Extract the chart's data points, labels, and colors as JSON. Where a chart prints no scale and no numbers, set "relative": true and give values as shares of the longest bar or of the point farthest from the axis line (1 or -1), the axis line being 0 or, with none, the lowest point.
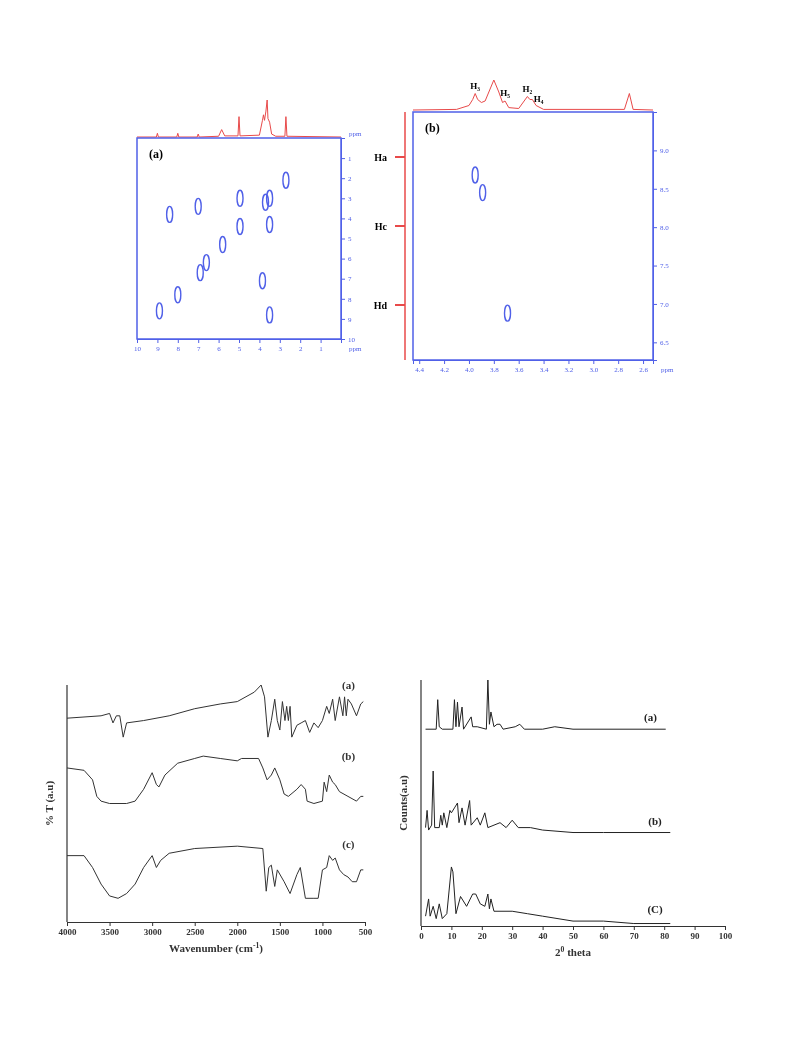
{
  "chart_data": [
    {
      "type": "line",
      "relative": true,
      "xlim": [
        10,
        0
      ],
      "tick_labels": false,
      "series": [
        {
          "color": "#e84a4a",
          "x": [
            10,
            9.05,
            9,
            8.95,
            8.05,
            8,
            7.95,
            7.05,
            7,
            6.95,
            6,
            5.85,
            5.7,
            5.05,
            5,
            4.95,
            4,
            3.85,
            3.8,
            3.75,
            3.68,
            3.62,
            3.58,
            3.5,
            3.4,
            3.2,
            2.75,
            2.7,
            2.65,
            0
          ],
          "values": [
            0,
            0,
            0.1,
            0,
            0,
            0.1,
            0,
            0,
            0.08,
            0,
            0.02,
            0.2,
            0.03,
            0.03,
            0.55,
            0.03,
            0.05,
            0.45,
            0.6,
            0.45,
            0.7,
            1,
            0.5,
            0.4,
            0.08,
            0.02,
            0.02,
            0.55,
            0.02,
            0
          ]
        }
      ]
    },
    {
      "type": "scatter",
      "title": "(a)",
      "xlabel": "ppm",
      "ylabel": "ppm",
      "xlim": [
        10,
        0
      ],
      "ylim": [
        10,
        0
      ],
      "xticks": [
        10,
        9,
        8,
        7,
        6,
        5,
        4,
        3,
        2,
        1
      ],
      "yticks": [
        1,
        2,
        3,
        4,
        5,
        6,
        7,
        8,
        9,
        10
      ],
      "marker": "circle",
      "series": [
        {
          "color": "#5060e8",
          "x": [
            8.9,
            8.0,
            6.9,
            6.6,
            5.8,
            4.95,
            4.95,
            3.7,
            3.5,
            3.5,
            2.7,
            8.4,
            7.0,
            3.85,
            3.5
          ],
          "values": [
            8.6,
            7.8,
            6.7,
            6.2,
            5.3,
            4.4,
            3.0,
            3.2,
            3.0,
            4.3,
            2.1,
            3.8,
            3.4,
            7.1,
            8.8
          ]
        }
      ]
    },
    {
      "type": "line",
      "relative": true,
      "xlim": [
        4.45,
        2.52
      ],
      "tick_labels": false,
      "annotations": [
        {
          "text": "H₃",
          "x": 3.95,
          "y": 0.55
        },
        {
          "text": "H₅",
          "x": 3.71,
          "y": 0.3
        },
        {
          "text": "H₂",
          "x": 3.53,
          "y": 0.45
        },
        {
          "text": "H₄",
          "x": 3.44,
          "y": 0.1
        }
      ],
      "series": [
        {
          "color": "#e84a4a",
          "x": [
            4.45,
            4.1,
            4.0,
            3.97,
            3.95,
            3.93,
            3.9,
            3.87,
            3.8,
            3.76,
            3.73,
            3.71,
            3.68,
            3.6,
            3.53,
            3.51,
            3.49,
            3.46,
            3.4,
            2.75,
            2.71,
            2.68,
            2.52
          ],
          "values": [
            0,
            0.02,
            0.15,
            0.35,
            0.55,
            0.35,
            0.25,
            0.3,
            1,
            0.6,
            0.25,
            0.3,
            0.08,
            0.05,
            0.45,
            0.35,
            0.35,
            0.15,
            0.02,
            0.02,
            0.55,
            0.02,
            0
          ]
        }
      ]
    },
    {
      "type": "scatter",
      "title": "(b)",
      "xlabel": "ppm",
      "xlim": [
        4.45,
        2.52
      ],
      "ylim": [
        6.27,
        9.5
      ],
      "xticks": [
        4.4,
        4.2,
        {
          "value": 4,
          "label": "4.0"
        },
        3.8,
        3.6,
        3.4,
        3.2,
        {
          "value": 3,
          "label": "3.0"
        },
        2.8,
        2.6
      ],
      "yticks": [
        {
          "value": 9,
          "label": "9.0"
        },
        8.5,
        {
          "value": 8,
          "label": "8.0"
        },
        7.5,
        {
          "value": 7,
          "label": "7.0"
        },
        6.5
      ],
      "marker": "circle",
      "annotations": [
        "Ha",
        "Hc",
        "Hd"
      ],
      "series": [
        {
          "color": "#5060e8",
          "x": [
            3.95,
            3.89,
            3.69
          ],
          "values": [
            8.68,
            8.45,
            6.88
          ]
        }
      ]
    },
    {
      "type": "line",
      "relative": true,
      "xlim": [
        4000,
        500
      ],
      "xticks": [
        4000,
        3500,
        3000,
        2500,
        2000,
        1500,
        1000,
        500
      ],
      "xlabel": "Wavenumber (cm$^{-1}$)",
      "ylabel": "% T (a.u)",
      "series": [
        {
          "name": "(a)",
          "color": "#333333",
          "x": [
            4000,
            3600,
            3500,
            3460,
            3420,
            3380,
            3340,
            3300,
            3100,
            2800,
            2500,
            2200,
            2000,
            1800,
            1720,
            1680,
            1640,
            1600,
            1560,
            1530,
            1500,
            1470,
            1440,
            1420,
            1400,
            1380,
            1360,
            1300,
            1250,
            1200,
            1150,
            1100,
            1050,
            1000,
            950,
            920,
            880,
            850,
            800,
            760,
            740,
            720,
            700,
            660,
            600,
            550,
            520
          ],
          "values": [
            0.86,
            0.87,
            0.88,
            0.84,
            0.87,
            0.87,
            0.78,
            0.84,
            0.85,
            0.87,
            0.9,
            0.92,
            0.93,
            0.97,
            1,
            0.95,
            0.78,
            0.85,
            0.94,
            0.85,
            0.81,
            0.93,
            0.85,
            0.91,
            0.85,
            0.91,
            0.78,
            0.83,
            0.84,
            0.85,
            0.8,
            0.84,
            0.82,
            0.85,
            0.91,
            0.88,
            0.94,
            0.85,
            0.95,
            0.87,
            0.95,
            0.87,
            0.94,
            0.92,
            0.87,
            0.92,
            0.93
          ]
        },
        {
          "name": "(b)",
          "color": "#333333",
          "x": [
            4000,
            3800,
            3700,
            3650,
            3600,
            3500,
            3300,
            3200,
            3100,
            3000,
            2950,
            2920,
            2850,
            2700,
            2500,
            2400,
            2200,
            2000,
            1950,
            1750,
            1700,
            1650,
            1600,
            1560,
            1500,
            1450,
            1400,
            1300,
            1250,
            1200,
            1180,
            1100,
            1000,
            980,
            950,
            920,
            880,
            850,
            800,
            700,
            600,
            550,
            520
          ],
          "values": [
            0.65,
            0.64,
            0.6,
            0.53,
            0.51,
            0.5,
            0.5,
            0.51,
            0.56,
            0.63,
            0.58,
            0.57,
            0.62,
            0.67,
            0.69,
            0.7,
            0.69,
            0.68,
            0.69,
            0.69,
            0.65,
            0.6,
            0.62,
            0.65,
            0.6,
            0.54,
            0.53,
            0.56,
            0.58,
            0.56,
            0.51,
            0.5,
            0.51,
            0.59,
            0.55,
            0.62,
            0.59,
            0.58,
            0.55,
            0.53,
            0.51,
            0.53,
            0.53
          ]
        },
        {
          "name": "(c)",
          "color": "#333333",
          "x": [
            4000,
            3800,
            3700,
            3600,
            3500,
            3400,
            3300,
            3200,
            3100,
            3000,
            2950,
            2900,
            2800,
            2500,
            2000,
            1700,
            1660,
            1630,
            1600,
            1560,
            1530,
            1450,
            1380,
            1300,
            1260,
            1200,
            1100,
            1050,
            1000,
            950,
            920,
            880,
            850,
            800,
            750,
            700,
            650,
            600,
            550,
            520
          ],
          "values": [
            0.28,
            0.28,
            0.23,
            0.16,
            0.11,
            0.1,
            0.12,
            0.16,
            0.23,
            0.28,
            0.23,
            0.26,
            0.29,
            0.31,
            0.32,
            0.31,
            0.13,
            0.23,
            0.24,
            0.15,
            0.22,
            0.17,
            0.12,
            0.2,
            0.23,
            0.1,
            0.1,
            0.1,
            0.22,
            0.23,
            0.28,
            0.26,
            0.27,
            0.22,
            0.2,
            0.19,
            0.17,
            0.17,
            0.22,
            0.22
          ]
        }
      ]
    },
    {
      "type": "line",
      "relative": true,
      "xlim": [
        0,
        100
      ],
      "xticks": [
        0,
        10,
        20,
        30,
        40,
        50,
        60,
        70,
        80,
        90,
        100
      ],
      "xlabel": "2$^{0}$ theta",
      "ylabel": "Counts(a.u)",
      "series": [
        {
          "name": "(a)",
          "color": "#222222",
          "x": [
            1.5,
            5,
            5.5,
            6,
            7,
            10.5,
            11,
            11.5,
            12,
            12.5,
            13.5,
            14,
            16.5,
            17,
            18.5,
            21.5,
            22,
            22.5,
            23,
            24,
            25,
            26,
            27,
            31,
            32.5,
            34,
            40,
            44,
            50,
            80.5
          ],
          "values": [
            0.8,
            0.8,
            0.92,
            0.81,
            0.8,
            0.8,
            0.92,
            0.81,
            0.91,
            0.81,
            0.89,
            0.8,
            0.85,
            0.81,
            0.81,
            0.8,
            1,
            0.82,
            0.87,
            0.81,
            0.82,
            0.82,
            0.8,
            0.81,
            0.82,
            0.8,
            0.8,
            0.81,
            0.8,
            0.8
          ]
        },
        {
          "name": "(b)",
          "color": "#222222",
          "x": [
            1.5,
            2,
            2.5,
            3.5,
            4,
            4.5,
            6,
            6.5,
            7,
            7.5,
            8.5,
            9.5,
            10,
            11,
            12,
            12.5,
            13.5,
            14.5,
            16,
            16.5,
            18.5,
            19.5,
            21,
            22,
            26,
            28,
            30,
            32,
            36,
            40,
            50,
            60,
            82
          ],
          "values": [
            0.4,
            0.47,
            0.39,
            0.41,
            0.63,
            0.4,
            0.4,
            0.45,
            0.41,
            0.46,
            0.4,
            0.47,
            0.46,
            0.48,
            0.5,
            0.42,
            0.48,
            0.41,
            0.51,
            0.41,
            0.44,
            0.41,
            0.46,
            0.4,
            0.42,
            0.4,
            0.43,
            0.4,
            0.4,
            0.39,
            0.38,
            0.38,
            0.38
          ]
        },
        {
          "name": "(C)",
          "color": "#222222",
          "x": [
            1.5,
            2.5,
            3,
            4,
            5,
            6,
            7,
            8.5,
            10,
            10.5,
            11.5,
            13,
            15,
            17,
            18,
            19.5,
            21,
            22,
            22.5,
            23,
            24,
            30,
            35,
            40,
            50,
            60,
            70,
            82
          ],
          "values": [
            0.04,
            0.11,
            0.04,
            0.08,
            0.03,
            0.09,
            0.03,
            0.05,
            0.24,
            0.22,
            0.05,
            0.12,
            0.08,
            0.13,
            0.13,
            0.09,
            0.08,
            0.13,
            0.07,
            0.11,
            0.06,
            0.06,
            0.05,
            0.04,
            0.02,
            0.02,
            0.01,
            0.01
          ]
        }
      ]
    }
  ]
}
